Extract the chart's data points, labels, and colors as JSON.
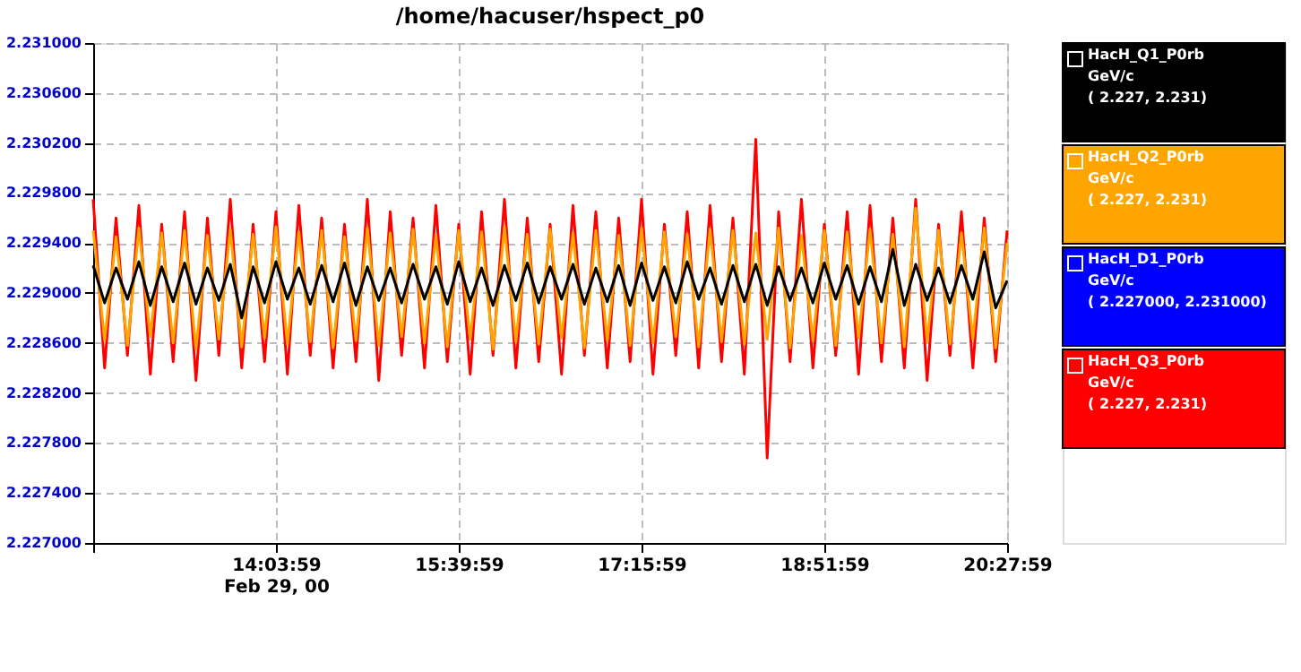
{
  "chart_data": {
    "type": "line",
    "title": "/home/hacuser/hspect_p0",
    "x": [
      "2000-02-29T12:27:59",
      "2000-02-29T12:33:59",
      "2000-02-29T12:39:59",
      "2000-02-29T12:45:59",
      "2000-02-29T12:51:59",
      "2000-02-29T12:57:59",
      "2000-02-29T13:03:59",
      "2000-02-29T13:09:59",
      "2000-02-29T13:15:59",
      "2000-02-29T13:21:59",
      "2000-02-29T13:27:59",
      "2000-02-29T13:33:59",
      "2000-02-29T13:39:59",
      "2000-02-29T13:45:59",
      "2000-02-29T13:51:59",
      "2000-02-29T13:57:59",
      "2000-02-29T14:03:59",
      "2000-02-29T14:09:59",
      "2000-02-29T14:15:59",
      "2000-02-29T14:21:59",
      "2000-02-29T14:27:59",
      "2000-02-29T14:33:59",
      "2000-02-29T14:39:59",
      "2000-02-29T14:45:59",
      "2000-02-29T14:51:59",
      "2000-02-29T14:57:59",
      "2000-02-29T15:03:59",
      "2000-02-29T15:09:59",
      "2000-02-29T15:15:59",
      "2000-02-29T15:21:59",
      "2000-02-29T15:27:59",
      "2000-02-29T15:33:59",
      "2000-02-29T15:39:59",
      "2000-02-29T15:45:59",
      "2000-02-29T15:51:59",
      "2000-02-29T15:57:59",
      "2000-02-29T16:03:59",
      "2000-02-29T16:09:59",
      "2000-02-29T16:15:59",
      "2000-02-29T16:21:59",
      "2000-02-29T16:27:59",
      "2000-02-29T16:33:59",
      "2000-02-29T16:39:59",
      "2000-02-29T16:45:59",
      "2000-02-29T16:51:59",
      "2000-02-29T16:57:59",
      "2000-02-29T17:03:59",
      "2000-02-29T17:09:59",
      "2000-02-29T17:15:59",
      "2000-02-29T17:21:59",
      "2000-02-29T17:27:59",
      "2000-02-29T17:33:59",
      "2000-02-29T17:39:59",
      "2000-02-29T17:45:59",
      "2000-02-29T17:51:59",
      "2000-02-29T17:57:59",
      "2000-02-29T18:03:59",
      "2000-02-29T18:09:59",
      "2000-02-29T18:15:59",
      "2000-02-29T18:21:59",
      "2000-02-29T18:27:59",
      "2000-02-29T18:33:59",
      "2000-02-29T18:39:59",
      "2000-02-29T18:45:59",
      "2000-02-29T18:51:59",
      "2000-02-29T18:57:59",
      "2000-02-29T19:03:59",
      "2000-02-29T19:09:59",
      "2000-02-29T19:15:59",
      "2000-02-29T19:21:59",
      "2000-02-29T19:27:59",
      "2000-02-29T19:33:59",
      "2000-02-29T19:39:59",
      "2000-02-29T19:45:59",
      "2000-02-29T19:51:59",
      "2000-02-29T19:57:59",
      "2000-02-29T20:03:59",
      "2000-02-29T20:09:59",
      "2000-02-29T20:15:59",
      "2000-02-29T20:21:59",
      "2000-02-29T20:27:59"
    ],
    "series": [
      {
        "name": "HacH_Q1_P0rb\nGeV/c\n( 2.227, 2.231)",
        "color": "#000000",
        "values": [
          2.22922,
          2.22892,
          2.2292,
          2.22895,
          2.22925,
          2.2289,
          2.22921,
          2.22893,
          2.22924,
          2.22891,
          2.2292,
          2.22894,
          2.22923,
          2.2288,
          2.22921,
          2.22892,
          2.22925,
          2.22895,
          2.2292,
          2.22891,
          2.22922,
          2.22893,
          2.22924,
          2.2289,
          2.22921,
          2.22894,
          2.2292,
          2.22892,
          2.22923,
          2.22895,
          2.22921,
          2.22891,
          2.22925,
          2.22893,
          2.2292,
          2.2289,
          2.22922,
          2.22894,
          2.22924,
          2.22892,
          2.22921,
          2.22895,
          2.22923,
          2.22891,
          2.2292,
          2.22893,
          2.22922,
          2.2289,
          2.22924,
          2.22894,
          2.22921,
          2.22892,
          2.22925,
          2.22895,
          2.2292,
          2.22891,
          2.22922,
          2.22893,
          2.22923,
          2.2289,
          2.22921,
          2.22894,
          2.2292,
          2.22892,
          2.22924,
          2.22895,
          2.22922,
          2.22891,
          2.22921,
          2.22893,
          2.22935,
          2.2289,
          2.22923,
          2.22894,
          2.2292,
          2.22892,
          2.22922,
          2.22895,
          2.22933,
          2.22888,
          2.2291
        ]
      },
      {
        "name": "HacH_Q2_P0rb\nGeV/c\n( 2.227, 2.231)",
        "color": "#ffa500",
        "values": [
          2.2295,
          2.22862,
          2.22945,
          2.22858,
          2.22952,
          2.22865,
          2.22948,
          2.2286,
          2.2295,
          2.22855,
          2.22946,
          2.22863,
          2.22951,
          2.22857,
          2.22947,
          2.22864,
          2.22953,
          2.22859,
          2.22949,
          2.22861,
          2.2295,
          2.22856,
          2.22945,
          2.22862,
          2.22952,
          2.22858,
          2.22948,
          2.22865,
          2.22951,
          2.2286,
          2.22946,
          2.22857,
          2.2295,
          2.22863,
          2.22949,
          2.22855,
          2.22953,
          2.22861,
          2.22947,
          2.22859,
          2.22951,
          2.22864,
          2.22948,
          2.22856,
          2.2295,
          2.22862,
          2.22946,
          2.22858,
          2.22952,
          2.2286,
          2.22949,
          2.22865,
          2.22947,
          2.22857,
          2.22951,
          2.22861,
          2.2295,
          2.22859,
          2.22948,
          2.22863,
          2.22952,
          2.22856,
          2.22946,
          2.22862,
          2.2295,
          2.22858,
          2.22949,
          2.22864,
          2.22951,
          2.2286,
          2.22947,
          2.22857,
          2.22968,
          2.22861,
          2.2295,
          2.22859,
          2.22948,
          2.22863,
          2.22952,
          2.22856,
          2.2294
        ]
      },
      {
        "name": "HacH_D1_P0rb\nGeV/c\n( 2.227000, 2.231000)",
        "color": "#0000ff",
        "values": [
          null,
          null,
          null,
          null,
          null,
          null,
          null,
          null,
          null,
          null,
          null,
          null,
          null,
          null,
          null,
          null,
          null,
          null,
          null,
          null,
          null,
          null,
          null,
          null,
          null,
          null,
          null,
          null,
          null,
          null,
          null,
          null,
          null,
          null,
          null,
          null,
          null,
          null,
          null,
          null,
          null,
          null,
          null,
          null,
          null,
          null,
          null,
          null,
          null,
          null,
          null,
          null,
          null,
          null,
          null,
          null,
          null,
          null,
          null,
          null,
          null,
          null,
          null,
          null,
          null,
          null,
          null,
          null,
          null,
          null,
          null,
          null,
          null,
          null,
          null,
          null,
          null,
          null,
          null,
          null,
          null
        ]
      },
      {
        "name": "HacH_Q3_P0rb\nGeV/c\n( 2.227, 2.231)",
        "color": "#ff0000",
        "values": [
          2.22975,
          2.2284,
          2.2296,
          2.2285,
          2.2297,
          2.22835,
          2.22955,
          2.22845,
          2.22965,
          2.2283,
          2.2296,
          2.2285,
          2.22975,
          2.2284,
          2.22955,
          2.22845,
          2.22965,
          2.22835,
          2.2297,
          2.2285,
          2.2296,
          2.2284,
          2.22955,
          2.22845,
          2.22975,
          2.2283,
          2.22965,
          2.2285,
          2.2296,
          2.2284,
          2.2297,
          2.22845,
          2.22955,
          2.22835,
          2.22965,
          2.2285,
          2.22975,
          2.2284,
          2.2296,
          2.22845,
          2.22955,
          2.22835,
          2.2297,
          2.2285,
          2.22965,
          2.2284,
          2.2296,
          2.22845,
          2.22975,
          2.22835,
          2.22955,
          2.2285,
          2.22965,
          2.2284,
          2.2297,
          2.22845,
          2.2296,
          2.22835,
          2.23023,
          2.22768,
          2.22965,
          2.22845,
          2.22975,
          2.2284,
          2.22955,
          2.2285,
          2.22965,
          2.22835,
          2.2297,
          2.22845,
          2.2296,
          2.2284,
          2.22975,
          2.2283,
          2.22955,
          2.2285,
          2.22965,
          2.2284,
          2.2296,
          2.22845,
          2.2295
        ]
      }
    ],
    "xlim": [
      "2000-02-29T12:27:59",
      "2000-02-29T20:27:59"
    ],
    "xticks": [
      {
        "value": "2000-02-29T12:27:59",
        "label": null
      },
      {
        "value": "2000-02-29T14:03:59",
        "label": "14:03:59\nFeb 29, 00"
      },
      {
        "value": "2000-02-29T15:39:59",
        "label": "15:39:59"
      },
      {
        "value": "2000-02-29T17:15:59",
        "label": "17:15:59"
      },
      {
        "value": "2000-02-29T18:51:59",
        "label": "18:51:59"
      },
      {
        "value": "2000-02-29T20:27:59",
        "label": "20:27:59"
      }
    ],
    "ylim": [
      2.227,
      2.231
    ],
    "yticks": [
      {
        "value": 2.227,
        "label": "2.227000"
      },
      {
        "value": 2.2274,
        "label": "2.227400"
      },
      {
        "value": 2.2278,
        "label": "2.227800"
      },
      {
        "value": 2.2282,
        "label": "2.228200"
      },
      {
        "value": 2.2286,
        "label": "2.228600"
      },
      {
        "value": 2.229,
        "label": "2.229000"
      },
      {
        "value": 2.2294,
        "label": "2.229400"
      },
      {
        "value": 2.2298,
        "label": "2.229800"
      },
      {
        "value": 2.2302,
        "label": "2.230200"
      },
      {
        "value": 2.2306,
        "label": "2.230600"
      },
      {
        "value": 2.231,
        "label": "2.231000"
      }
    ],
    "grid": true,
    "legend": "right",
    "marker": "none",
    "line_style": "solid"
  }
}
